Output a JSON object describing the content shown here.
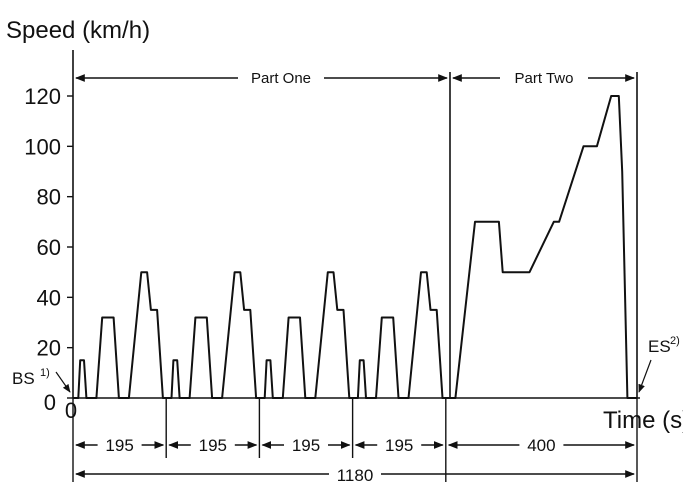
{
  "chart_data": {
    "type": "line",
    "title": "",
    "ylabel": "Speed (km/h)",
    "xlabel": "Time (s)",
    "ylim": [
      0,
      130
    ],
    "xlim": [
      0,
      1180
    ],
    "yticks": [
      "0",
      "20",
      "40",
      "60",
      "80",
      "100",
      "120"
    ],
    "ytick_values": [
      0,
      20,
      40,
      60,
      80,
      100,
      120
    ],
    "x_origin_label": "0",
    "grid": false,
    "series": [
      {
        "x": [
          0,
          11,
          15,
          23,
          28,
          49,
          61,
          85,
          96,
          117,
          143,
          155,
          163,
          176,
          188,
          195,
          206,
          210,
          218,
          223,
          244,
          256,
          280,
          291,
          312,
          338,
          350,
          358,
          371,
          383,
          390,
          401,
          405,
          413,
          418,
          439,
          451,
          475,
          486,
          507,
          533,
          545,
          553,
          566,
          578,
          585,
          596,
          600,
          608,
          613,
          634,
          646,
          670,
          681,
          702,
          728,
          740,
          748,
          761,
          773,
          780,
          800,
          841,
          891,
          899,
          955,
          1006,
          1017,
          1068,
          1096,
          1126,
          1142,
          1149,
          1160,
          1180
        ],
        "y": [
          0,
          0,
          15,
          15,
          0,
          0,
          32,
          32,
          0,
          0,
          50,
          50,
          35,
          35,
          0,
          0,
          0,
          15,
          15,
          0,
          0,
          32,
          32,
          0,
          0,
          50,
          50,
          35,
          35,
          0,
          0,
          0,
          15,
          15,
          0,
          0,
          32,
          32,
          0,
          0,
          50,
          50,
          35,
          35,
          0,
          0,
          0,
          15,
          15,
          0,
          0,
          32,
          32,
          0,
          0,
          50,
          50,
          35,
          35,
          0,
          0,
          0,
          70,
          70,
          50,
          50,
          70,
          70,
          100,
          100,
          120,
          120,
          90,
          0,
          0
        ]
      }
    ],
    "annotations": {
      "part_one": "Part One",
      "part_two": "Part Two",
      "bs": "BS",
      "bs_sup": "1)",
      "es": "ES",
      "es_sup": "2)"
    },
    "segments": [
      {
        "label": "195",
        "start": 0,
        "end": 195
      },
      {
        "label": "195",
        "start": 195,
        "end": 390
      },
      {
        "label": "195",
        "start": 390,
        "end": 585
      },
      {
        "label": "195",
        "start": 585,
        "end": 780
      },
      {
        "label": "400",
        "start": 780,
        "end": 1180
      }
    ],
    "total": {
      "label": "1180",
      "start": 0,
      "end": 1180
    },
    "part_boundary": 780
  }
}
